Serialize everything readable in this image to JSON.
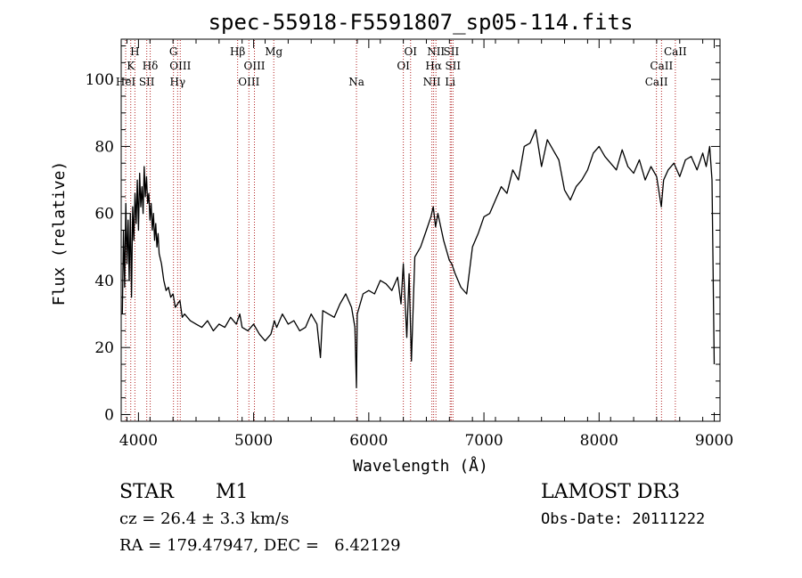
{
  "chart_data": {
    "type": "line",
    "title": "spec-55918-F5591807_sp05-114.fits",
    "xlabel": "Wavelength (Å)",
    "ylabel": "Flux (relative)",
    "xlim": [
      3850,
      9050
    ],
    "ylim": [
      -2,
      112
    ],
    "xticks": [
      4000,
      5000,
      6000,
      7000,
      8000,
      9000
    ],
    "yticks": [
      0,
      20,
      40,
      60,
      80,
      100
    ],
    "series": [
      {
        "name": "flux",
        "x": [
          3860,
          3870,
          3880,
          3890,
          3900,
          3910,
          3920,
          3930,
          3940,
          3950,
          3960,
          3970,
          3980,
          3990,
          4000,
          4010,
          4020,
          4030,
          4040,
          4050,
          4060,
          4070,
          4080,
          4090,
          4100,
          4110,
          4120,
          4130,
          4140,
          4150,
          4160,
          4170,
          4180,
          4200,
          4220,
          4240,
          4260,
          4280,
          4300,
          4320,
          4340,
          4360,
          4380,
          4400,
          4450,
          4500,
          4550,
          4600,
          4650,
          4700,
          4750,
          4800,
          4850,
          4880,
          4900,
          4950,
          5000,
          5050,
          5100,
          5150,
          5180,
          5200,
          5250,
          5300,
          5350,
          5400,
          5450,
          5500,
          5550,
          5580,
          5600,
          5650,
          5700,
          5750,
          5800,
          5850,
          5880,
          5893,
          5900,
          5950,
          6000,
          6050,
          6100,
          6150,
          6200,
          6250,
          6280,
          6300,
          6330,
          6350,
          6370,
          6400,
          6450,
          6500,
          6540,
          6560,
          6580,
          6600,
          6650,
          6700,
          6720,
          6750,
          6800,
          6850,
          6900,
          6950,
          7000,
          7050,
          7100,
          7150,
          7200,
          7250,
          7300,
          7350,
          7400,
          7450,
          7500,
          7550,
          7600,
          7650,
          7700,
          7750,
          7800,
          7850,
          7900,
          7950,
          8000,
          8050,
          8100,
          8150,
          8200,
          8250,
          8300,
          8350,
          8400,
          8450,
          8500,
          8540,
          8560,
          8600,
          8650,
          8700,
          8750,
          8800,
          8850,
          8900,
          8930,
          8960,
          8980,
          9000
        ],
        "values": [
          30,
          55,
          38,
          63,
          45,
          58,
          40,
          60,
          35,
          62,
          52,
          66,
          57,
          70,
          55,
          72,
          62,
          68,
          60,
          74,
          65,
          71,
          63,
          66,
          58,
          63,
          55,
          60,
          52,
          57,
          50,
          54,
          48,
          45,
          40,
          37,
          38,
          35,
          36,
          32,
          33,
          34,
          29,
          30,
          28,
          27,
          26,
          28,
          25,
          27,
          26,
          29,
          27,
          30,
          26,
          25,
          27,
          24,
          22,
          24,
          28,
          26,
          30,
          27,
          28,
          25,
          26,
          30,
          27,
          17,
          31,
          30,
          29,
          33,
          36,
          32,
          26,
          8,
          30,
          36,
          37,
          36,
          40,
          39,
          37,
          41,
          33,
          45,
          23,
          42,
          16,
          47,
          50,
          55,
          59,
          62,
          56,
          60,
          52,
          46,
          45,
          42,
          38,
          36,
          50,
          54,
          59,
          60,
          64,
          68,
          66,
          73,
          70,
          80,
          81,
          85,
          74,
          82,
          79,
          76,
          67,
          64,
          68,
          70,
          73,
          78,
          80,
          77,
          75,
          73,
          79,
          74,
          72,
          76,
          70,
          74,
          71,
          62,
          70,
          73,
          75,
          71,
          76,
          77,
          73,
          78,
          74,
          80,
          70,
          15
        ],
        "color": "#000000"
      }
    ],
    "lines": [
      {
        "wl": 3889,
        "label": "HeI",
        "row": 3
      },
      {
        "wl": 3933,
        "label": "K",
        "row": 2
      },
      {
        "wl": 3969,
        "label": "H",
        "row": 1
      },
      {
        "wl": 4072,
        "label": "SII",
        "row": 3
      },
      {
        "wl": 4102,
        "label": "Hδ",
        "row": 2
      },
      {
        "wl": 4304,
        "label": "G",
        "row": 1
      },
      {
        "wl": 4340,
        "label": "Hγ",
        "row": 3
      },
      {
        "wl": 4363,
        "label": "OIII",
        "row": 2
      },
      {
        "wl": 4861,
        "label": "Hβ",
        "row": 1
      },
      {
        "wl": 4959,
        "label": "OIII",
        "row": 3
      },
      {
        "wl": 5007,
        "label": "OIII",
        "row": 2
      },
      {
        "wl": 5175,
        "label": "Mg",
        "row": 1
      },
      {
        "wl": 5893,
        "label": "Na",
        "row": 3
      },
      {
        "wl": 6300,
        "label": "OI",
        "row": 2
      },
      {
        "wl": 6363,
        "label": "OI",
        "row": 1
      },
      {
        "wl": 6548,
        "label": "NII",
        "row": 3
      },
      {
        "wl": 6563,
        "label": "Hα",
        "row": 2
      },
      {
        "wl": 6583,
        "label": "NII",
        "row": 1
      },
      {
        "wl": 6707,
        "label": "Li",
        "row": 3
      },
      {
        "wl": 6716,
        "label": "SII",
        "row": 1
      },
      {
        "wl": 6731,
        "label": "SII",
        "row": 2
      },
      {
        "wl": 8498,
        "label": "CaII",
        "row": 3
      },
      {
        "wl": 8542,
        "label": "CaII",
        "row": 2
      },
      {
        "wl": 8662,
        "label": "CaII",
        "row": 1
      }
    ]
  },
  "info": {
    "class": "STAR",
    "subclass": "M1",
    "cz": "cz = 26.4 ± 3.3 km/s",
    "radec": "RA = 179.47947, DEC =   6.42129",
    "survey": "LAMOST DR3",
    "obsdate": "Obs-Date: 20111222"
  },
  "colors": {
    "line_marker": "#b22222",
    "spectrum": "#000000"
  }
}
